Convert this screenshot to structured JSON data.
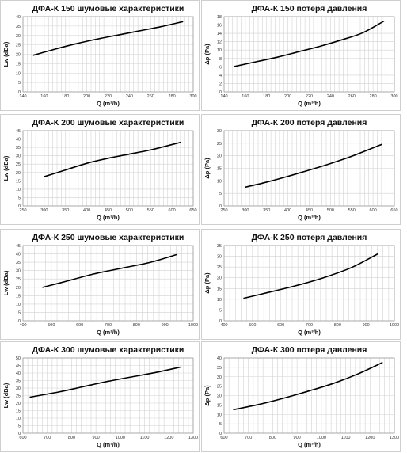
{
  "chart_data": [
    {
      "type": "line",
      "title": "ДФА-К 150 шумовые характеристики",
      "xlabel": "Q (m³/h)",
      "ylabel": "Lw (dBa)",
      "xlim": [
        140,
        300
      ],
      "x_ticks": [
        140,
        160,
        180,
        200,
        220,
        240,
        260,
        280,
        300
      ],
      "ylim": [
        0,
        40
      ],
      "y_ticks": [
        0,
        5,
        10,
        15,
        20,
        25,
        30,
        35,
        40
      ],
      "grid": true,
      "series": [
        {
          "x": [
            150,
            170,
            190,
            210,
            230,
            250,
            270,
            290
          ],
          "values": [
            19.5,
            22.7,
            25.6,
            28.1,
            30.3,
            32.5,
            34.7,
            37.3
          ]
        }
      ]
    },
    {
      "type": "line",
      "title": "ДФА-К 150 потеря давления",
      "xlabel": "Q (m³/h)",
      "ylabel": "Δp (Pa)",
      "xlim": [
        140,
        300
      ],
      "x_ticks": [
        140,
        160,
        180,
        200,
        220,
        240,
        260,
        280,
        300
      ],
      "ylim": [
        0,
        18
      ],
      "y_ticks": [
        0,
        2,
        4,
        6,
        8,
        10,
        12,
        14,
        16,
        18
      ],
      "grid": true,
      "series": [
        {
          "x": [
            150,
            170,
            190,
            210,
            230,
            250,
            270,
            290
          ],
          "values": [
            6.1,
            7.2,
            8.3,
            9.6,
            10.9,
            12.4,
            14.1,
            16.9
          ]
        }
      ]
    },
    {
      "type": "line",
      "title": "ДФА-К 200 шумовые характеристики",
      "xlabel": "Q (m³/h)",
      "ylabel": "Lw (dBa)",
      "xlim": [
        250,
        650
      ],
      "x_ticks": [
        250,
        300,
        350,
        400,
        450,
        500,
        550,
        600,
        650
      ],
      "ylim": [
        0,
        45
      ],
      "y_ticks": [
        0,
        5,
        10,
        15,
        20,
        25,
        30,
        35,
        40,
        45
      ],
      "grid": true,
      "series": [
        {
          "x": [
            300,
            350,
            400,
            450,
            500,
            550,
            620
          ],
          "values": [
            17.5,
            21.5,
            25.5,
            28.5,
            31,
            33.5,
            38
          ]
        }
      ]
    },
    {
      "type": "line",
      "title": "ДФА-К 200 потеря давления",
      "xlabel": "Q (m³/h)",
      "ylabel": "Δp (Pa)",
      "xlim": [
        250,
        650
      ],
      "x_ticks": [
        250,
        300,
        350,
        400,
        450,
        500,
        550,
        600,
        650
      ],
      "ylim": [
        0,
        30
      ],
      "y_ticks": [
        0,
        5,
        10,
        15,
        20,
        25,
        30
      ],
      "grid": true,
      "series": [
        {
          "x": [
            300,
            350,
            400,
            450,
            500,
            550,
            620
          ],
          "values": [
            7.5,
            9.5,
            11.8,
            14.3,
            16.9,
            19.8,
            24.5
          ]
        }
      ]
    },
    {
      "type": "line",
      "title": "ДФА-К 250 шумовые характеристики",
      "xlabel": "Q (m³/h)",
      "ylabel": "Lw (dBa)",
      "xlim": [
        400,
        1000
      ],
      "x_ticks": [
        400,
        500,
        600,
        700,
        800,
        900,
        1000
      ],
      "ylim": [
        0,
        45
      ],
      "y_ticks": [
        0,
        5,
        10,
        15,
        20,
        25,
        30,
        35,
        40,
        45
      ],
      "grid": true,
      "series": [
        {
          "x": [
            470,
            550,
            650,
            750,
            850,
            940
          ],
          "values": [
            20,
            23.5,
            28,
            31.5,
            35,
            39.5
          ]
        }
      ]
    },
    {
      "type": "line",
      "title": "ДФА-К 250 потеря давления",
      "xlabel": "Q (m³/h)",
      "ylabel": "Δp (Pa)",
      "xlim": [
        400,
        1000
      ],
      "x_ticks": [
        400,
        500,
        600,
        700,
        800,
        900,
        1000
      ],
      "ylim": [
        0,
        35
      ],
      "y_ticks": [
        0,
        5,
        10,
        15,
        20,
        25,
        30,
        35
      ],
      "grid": true,
      "series": [
        {
          "x": [
            470,
            550,
            650,
            750,
            850,
            940
          ],
          "values": [
            10.5,
            13,
            16.2,
            20,
            24.8,
            31
          ]
        }
      ]
    },
    {
      "type": "line",
      "title": "ДФА-К 300 шумовые характеристики",
      "xlabel": "Q (m³/h)",
      "ylabel": "Lw (dBa)",
      "xlim": [
        600,
        1300
      ],
      "x_ticks": [
        600,
        700,
        800,
        900,
        1000,
        1100,
        1200,
        1300
      ],
      "ylim": [
        0,
        50
      ],
      "y_ticks": [
        0,
        5,
        10,
        15,
        20,
        25,
        30,
        35,
        40,
        45,
        50
      ],
      "grid": true,
      "series": [
        {
          "x": [
            630,
            750,
            850,
            950,
            1050,
            1150,
            1250
          ],
          "values": [
            24,
            27.5,
            31,
            34.5,
            37.5,
            40.5,
            44
          ]
        }
      ]
    },
    {
      "type": "line",
      "title": "ДФА-К 300 потеря давления",
      "xlabel": "Q (m³/h)",
      "ylabel": "Δp (Pa)",
      "xlim": [
        600,
        1300
      ],
      "x_ticks": [
        600,
        700,
        800,
        900,
        1000,
        1100,
        1200,
        1300
      ],
      "ylim": [
        0,
        40
      ],
      "y_ticks": [
        0,
        5,
        10,
        15,
        20,
        25,
        30,
        35,
        40
      ],
      "grid": true,
      "series": [
        {
          "x": [
            640,
            750,
            850,
            950,
            1050,
            1150,
            1250
          ],
          "values": [
            12.5,
            15.5,
            18.8,
            22.5,
            26.5,
            31.5,
            37.5
          ]
        }
      ]
    }
  ]
}
